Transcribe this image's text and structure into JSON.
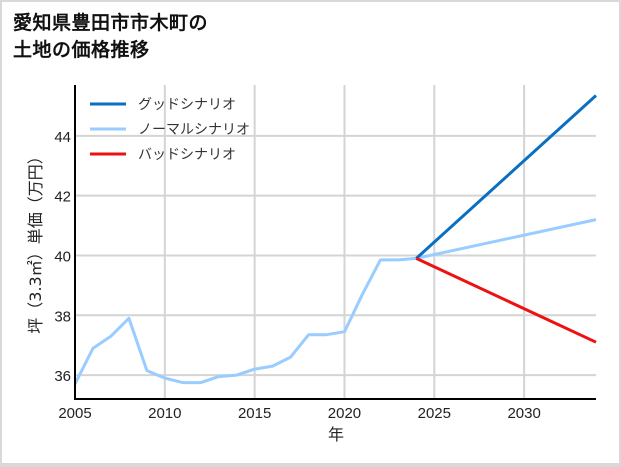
{
  "chart_data": {
    "type": "line",
    "title": "愛知県豊田市市木町の\n土地の価格推移",
    "title_lines": [
      "愛知県豊田市市木町の",
      "土地の価格推移"
    ],
    "xlabel": "年",
    "ylabel": "坪（3.3㎡）単価（万円）",
    "xlim": [
      2005,
      2034
    ],
    "ylim": [
      35.2,
      45.7
    ],
    "xticks": [
      2005,
      2010,
      2015,
      2020,
      2025,
      2030
    ],
    "yticks": [
      36,
      38,
      40,
      42,
      44
    ],
    "grid": true,
    "legend_position": "upper left",
    "series": [
      {
        "name": "グッドシナリオ",
        "color": "#0a6fc2",
        "x": [
          2024,
          2034
        ],
        "values": [
          39.9,
          45.35
        ]
      },
      {
        "name": "ノーマルシナリオ",
        "color": "#99ccff",
        "x": [
          2005,
          2006,
          2007,
          2008,
          2009,
          2010,
          2011,
          2012,
          2013,
          2014,
          2015,
          2016,
          2017,
          2018,
          2019,
          2020,
          2021,
          2022,
          2023,
          2024,
          2034
        ],
        "values": [
          35.7,
          36.9,
          37.3,
          37.9,
          36.15,
          35.9,
          35.75,
          35.75,
          35.95,
          36.0,
          36.2,
          36.3,
          36.6,
          37.35,
          37.35,
          37.45,
          38.7,
          39.85,
          39.85,
          39.9,
          41.2
        ]
      },
      {
        "name": "バッドシナリオ",
        "color": "#ee1111",
        "x": [
          2024,
          2034
        ],
        "values": [
          39.9,
          37.1
        ]
      }
    ]
  }
}
